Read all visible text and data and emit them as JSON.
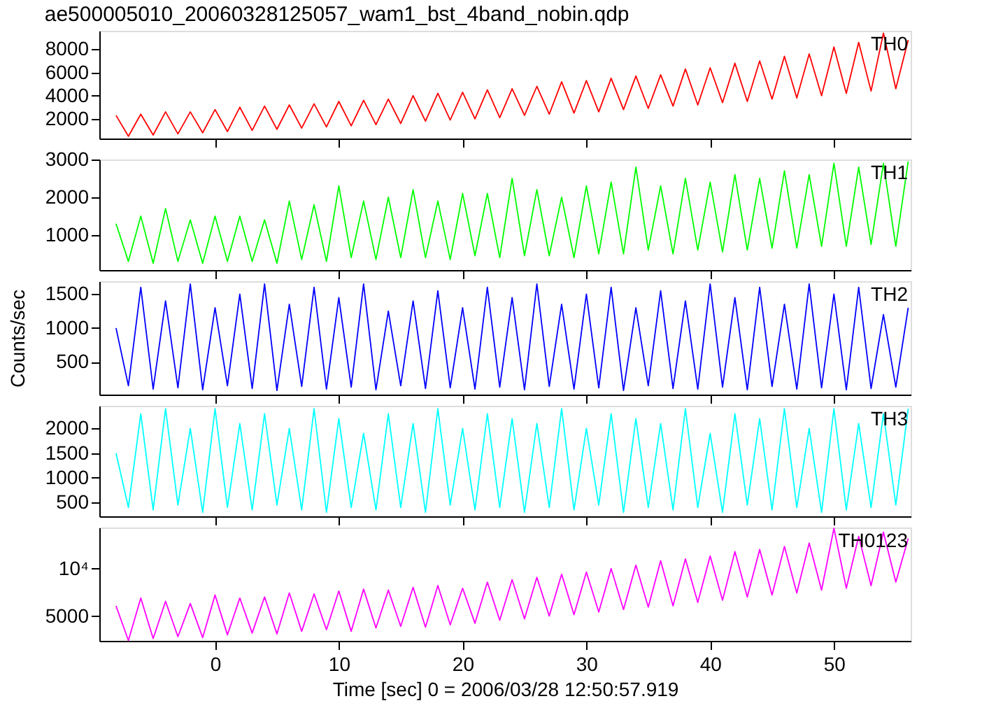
{
  "chart_data": [
    {
      "type": "line",
      "title": "ae500005010_20060328125057_wam1_bst_4band_nobin.qdp",
      "x": [
        -8,
        -7,
        -6,
        -5,
        -4,
        -3,
        -2,
        -1,
        0,
        1,
        2,
        3,
        4,
        5,
        6,
        7,
        8,
        9,
        10,
        11,
        12,
        13,
        14,
        15,
        16,
        17,
        18,
        19,
        20,
        21,
        22,
        23,
        24,
        25,
        26,
        27,
        28,
        29,
        30,
        31,
        32,
        33,
        34,
        35,
        36,
        37,
        38,
        39,
        40,
        41,
        42,
        43,
        44,
        45,
        46,
        47,
        48,
        49,
        50,
        51,
        52,
        53,
        54,
        55,
        56
      ],
      "xlim": [
        -9.35,
        56.2
      ],
      "xticks": [
        0,
        10,
        20,
        30,
        40,
        50
      ],
      "ylim": [
        300,
        9600
      ],
      "yticks": [
        2000,
        4000,
        6000,
        8000
      ],
      "tick_labels": "y",
      "grid": false,
      "line_style": "solid",
      "series": [
        {
          "name": "TH0",
          "color": "#ff0000",
          "values": [
            2300,
            500,
            2400,
            600,
            2600,
            700,
            2600,
            800,
            2800,
            900,
            3000,
            1000,
            3100,
            1100,
            3200,
            1200,
            3300,
            1300,
            3500,
            1400,
            3600,
            1500,
            3700,
            1600,
            4000,
            1800,
            4200,
            1900,
            4300,
            2000,
            4500,
            2100,
            4600,
            2300,
            4800,
            2400,
            5200,
            2500,
            5300,
            2600,
            5500,
            2800,
            5700,
            2900,
            5800,
            3100,
            6300,
            3200,
            6400,
            3400,
            6800,
            3500,
            7000,
            3700,
            7400,
            3800,
            7600,
            4000,
            8200,
            4200,
            8600,
            4400,
            9400,
            4600,
            8800
          ]
        }
      ]
    },
    {
      "type": "line",
      "x": [
        -8,
        -7,
        -6,
        -5,
        -4,
        -3,
        -2,
        -1,
        0,
        1,
        2,
        3,
        4,
        5,
        6,
        7,
        8,
        9,
        10,
        11,
        12,
        13,
        14,
        15,
        16,
        17,
        18,
        19,
        20,
        21,
        22,
        23,
        24,
        25,
        26,
        27,
        28,
        29,
        30,
        31,
        32,
        33,
        34,
        35,
        36,
        37,
        38,
        39,
        40,
        41,
        42,
        43,
        44,
        45,
        46,
        47,
        48,
        49,
        50,
        51,
        52,
        53,
        54,
        55,
        56
      ],
      "xlim": [
        -9.35,
        56.2
      ],
      "xticks": [
        0,
        10,
        20,
        30,
        40,
        50
      ],
      "ylim": [
        70,
        3000
      ],
      "yticks": [
        1000,
        2000,
        3000
      ],
      "tick_labels": "y",
      "grid": false,
      "line_style": "solid",
      "series": [
        {
          "name": "TH1",
          "color": "#00ff00",
          "values": [
            1300,
            300,
            1500,
            250,
            1700,
            300,
            1400,
            250,
            1500,
            300,
            1500,
            300,
            1400,
            250,
            1900,
            350,
            1800,
            300,
            2300,
            400,
            1900,
            350,
            2000,
            400,
            2200,
            400,
            1900,
            350,
            2100,
            450,
            2100,
            400,
            2500,
            450,
            2200,
            450,
            2000,
            400,
            2300,
            500,
            2400,
            500,
            2800,
            600,
            2300,
            500,
            2500,
            600,
            2400,
            550,
            2600,
            600,
            2500,
            650,
            2700,
            650,
            2600,
            700,
            2900,
            700,
            2800,
            750,
            2900,
            700,
            2950
          ]
        }
      ]
    },
    {
      "type": "line",
      "x": [
        -8,
        -7,
        -6,
        -5,
        -4,
        -3,
        -2,
        -1,
        0,
        1,
        2,
        3,
        4,
        5,
        6,
        7,
        8,
        9,
        10,
        11,
        12,
        13,
        14,
        15,
        16,
        17,
        18,
        19,
        20,
        21,
        22,
        23,
        24,
        25,
        26,
        27,
        28,
        29,
        30,
        31,
        32,
        33,
        34,
        35,
        36,
        37,
        38,
        39,
        40,
        41,
        42,
        43,
        44,
        45,
        46,
        47,
        48,
        49,
        50,
        51,
        52,
        53,
        54,
        55,
        56
      ],
      "xlim": [
        -9.35,
        56.2
      ],
      "xticks": [
        0,
        10,
        20,
        30,
        40,
        50
      ],
      "ylim": [
        20,
        1690
      ],
      "yticks": [
        500,
        1000,
        1500
      ],
      "ylabel": "Counts/sec",
      "tick_labels": "y",
      "grid": false,
      "line_style": "solid",
      "series": [
        {
          "name": "TH2",
          "color": "#0000ff",
          "values": [
            1000,
            150,
            1600,
            100,
            1400,
            120,
            1650,
            90,
            1300,
            150,
            1500,
            110,
            1650,
            80,
            1350,
            140,
            1600,
            100,
            1450,
            130,
            1650,
            90,
            1250,
            150,
            1400,
            110,
            1550,
            120,
            1300,
            100,
            1600,
            130,
            1450,
            90,
            1650,
            140,
            1350,
            100,
            1500,
            120,
            1600,
            80,
            1300,
            150,
            1550,
            110,
            1400,
            100,
            1650,
            130,
            1450,
            90,
            1600,
            140,
            1350,
            100,
            1650,
            120,
            1500,
            90,
            1600,
            110,
            1200,
            130,
            1300
          ]
        }
      ]
    },
    {
      "type": "line",
      "x": [
        -8,
        -7,
        -6,
        -5,
        -4,
        -3,
        -2,
        -1,
        0,
        1,
        2,
        3,
        4,
        5,
        6,
        7,
        8,
        9,
        10,
        11,
        12,
        13,
        14,
        15,
        16,
        17,
        18,
        19,
        20,
        21,
        22,
        23,
        24,
        25,
        26,
        27,
        28,
        29,
        30,
        31,
        32,
        33,
        34,
        35,
        36,
        37,
        38,
        39,
        40,
        41,
        42,
        43,
        44,
        45,
        46,
        47,
        48,
        49,
        50,
        51,
        52,
        53,
        54,
        55,
        56
      ],
      "xlim": [
        -9.35,
        56.2
      ],
      "xticks": [
        0,
        10,
        20,
        30,
        40,
        50
      ],
      "ylim": [
        220,
        2460
      ],
      "yticks": [
        500,
        1000,
        1500,
        2000
      ],
      "tick_labels": "y",
      "grid": false,
      "line_style": "solid",
      "series": [
        {
          "name": "TH3",
          "color": "#00ffff",
          "values": [
            1500,
            400,
            2300,
            350,
            2400,
            450,
            2000,
            300,
            2400,
            400,
            2100,
            350,
            2300,
            450,
            2000,
            350,
            2400,
            300,
            2200,
            400,
            1900,
            350,
            2300,
            400,
            2100,
            300,
            2400,
            450,
            2000,
            350,
            2300,
            400,
            2200,
            300,
            2100,
            400,
            2400,
            350,
            2000,
            450,
            2300,
            300,
            2200,
            400,
            2100,
            350,
            2400,
            400,
            1900,
            300,
            2300,
            450,
            2200,
            350,
            2400,
            400,
            2000,
            300,
            2400,
            350,
            2100,
            400,
            2300,
            450,
            2400
          ]
        }
      ]
    },
    {
      "type": "line",
      "x": [
        -8,
        -7,
        -6,
        -5,
        -4,
        -3,
        -2,
        -1,
        0,
        1,
        2,
        3,
        4,
        5,
        6,
        7,
        8,
        9,
        10,
        11,
        12,
        13,
        14,
        15,
        16,
        17,
        18,
        19,
        20,
        21,
        22,
        23,
        24,
        25,
        26,
        27,
        28,
        29,
        30,
        31,
        32,
        33,
        34,
        35,
        36,
        37,
        38,
        39,
        40,
        41,
        42,
        43,
        44,
        45,
        46,
        47,
        48,
        49,
        50,
        51,
        52,
        53,
        54,
        55,
        56
      ],
      "xlim": [
        -9.35,
        56.2
      ],
      "xticks": [
        0,
        10,
        20,
        30,
        40,
        50
      ],
      "ylim": [
        3480,
        18200
      ],
      "yticks": [
        5000,
        {
          "value": 10000,
          "label": "10⁴"
        }
      ],
      "log": "y",
      "xlabel": "Time [sec] 0 = 2006/03/28 12:50:57.919",
      "grid": false,
      "line_style": "solid",
      "series": [
        {
          "name": "TH0123",
          "color": "#ff00ff",
          "values": [
            5800,
            3500,
            6500,
            3600,
            6200,
            3700,
            6000,
            3650,
            6800,
            3800,
            6500,
            3900,
            6600,
            3850,
            7000,
            4000,
            6900,
            4100,
            7200,
            4000,
            7400,
            4200,
            7300,
            4300,
            7600,
            4250,
            7800,
            4400,
            7500,
            4500,
            8200,
            4700,
            8500,
            4800,
            8800,
            5000,
            9200,
            5100,
            9500,
            5300,
            10000,
            5500,
            10500,
            5700,
            11200,
            5800,
            11500,
            6100,
            12000,
            6300,
            12800,
            6600,
            13200,
            6800,
            13800,
            7000,
            14500,
            7300,
            18000,
            7500,
            16000,
            7800,
            17000,
            8200,
            15500
          ]
        }
      ]
    }
  ]
}
